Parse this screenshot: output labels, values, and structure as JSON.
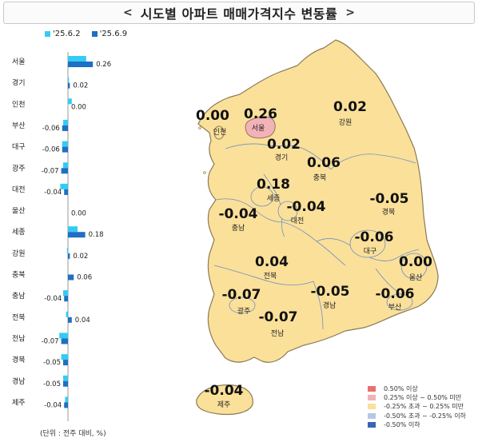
{
  "title": "시도별 아파트 매매가격지수 변동률",
  "title_arrows": {
    "left": "<",
    "right": ">"
  },
  "unit_note": "(단위 : 전주 대비, %)",
  "colors": {
    "series_prev": "#33ccf2",
    "series_curr": "#1f6fc4",
    "map_fill": "#fbe09a",
    "map_highlight": "#f2b2b8",
    "map_border": "#8c7a55",
    "map_inner_border": "#6f8fc0"
  },
  "chart_data": {
    "type": "bar",
    "orientation": "horizontal",
    "series": [
      {
        "name": "'25.6.2"
      },
      {
        "name": "'25.6.9"
      }
    ],
    "categories": [
      "서울",
      "경기",
      "인천",
      "부산",
      "대구",
      "광주",
      "대전",
      "울산",
      "세종",
      "강원",
      "충북",
      "충남",
      "전북",
      "전남",
      "경북",
      "경남",
      "제주"
    ],
    "values_prev": [
      0.19,
      0.01,
      0.04,
      -0.05,
      -0.06,
      -0.05,
      -0.08,
      0.0,
      0.1,
      -0.01,
      0.0,
      -0.05,
      -0.02,
      -0.09,
      -0.07,
      -0.05,
      -0.03
    ],
    "values_curr": [
      0.26,
      0.02,
      0.0,
      -0.06,
      -0.06,
      -0.07,
      -0.04,
      0.0,
      0.18,
      0.02,
      0.06,
      -0.04,
      0.04,
      -0.07,
      -0.05,
      -0.05,
      -0.04
    ],
    "curr_labels": [
      "0.26",
      "0.02",
      "0.00",
      "-0.06",
      "-0.06",
      "-0.07",
      "-0.04",
      "0.00",
      "0.18",
      "0.02",
      "0.06",
      "-0.04",
      "0.04",
      "-0.07",
      "-0.05",
      "-0.05",
      "-0.04"
    ]
  },
  "map": {
    "regions": [
      {
        "name": "인천",
        "value": "0.00"
      },
      {
        "name": "서울",
        "value": "0.26"
      },
      {
        "name": "강원",
        "value": "0.02"
      },
      {
        "name": "경기",
        "value": "0.02"
      },
      {
        "name": "충북",
        "value": "0.06"
      },
      {
        "name": "세종",
        "value": "0.18"
      },
      {
        "name": "경북",
        "value": "-0.05"
      },
      {
        "name": "충남",
        "value": "-0.04"
      },
      {
        "name": "대전",
        "value": "-0.04"
      },
      {
        "name": "대구",
        "value": "-0.06"
      },
      {
        "name": "전북",
        "value": "0.04"
      },
      {
        "name": "울산",
        "value": "0.00"
      },
      {
        "name": "광주",
        "value": "-0.07"
      },
      {
        "name": "경남",
        "value": "-0.05"
      },
      {
        "name": "부산",
        "value": "-0.06"
      },
      {
        "name": "전남",
        "value": "-0.07"
      },
      {
        "name": "제주",
        "value": "-0.04"
      }
    ],
    "legend": [
      {
        "label": "0.50% 이상",
        "color": "#e8706f"
      },
      {
        "label": "0.25% 이상 ~ 0.50% 미만",
        "color": "#f2b2b8"
      },
      {
        "label": "-0.25% 초과 ~ 0.25% 미만",
        "color": "#fbe09a"
      },
      {
        "label": "-0.50% 초과 ~ -0.25% 이하",
        "color": "#b6c7ea"
      },
      {
        "label": "-0.50% 이하",
        "color": "#3a64b4"
      }
    ]
  }
}
